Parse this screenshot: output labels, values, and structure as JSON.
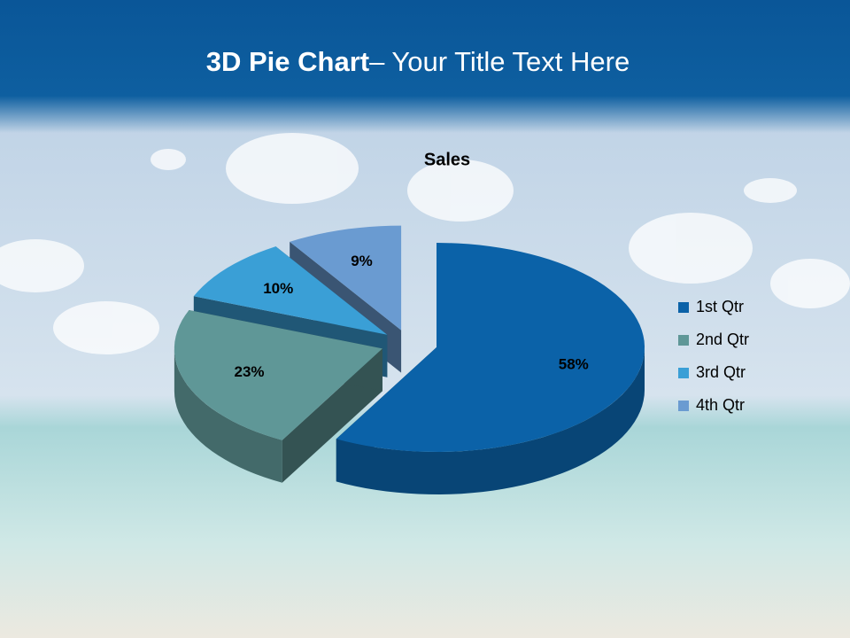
{
  "slide": {
    "title_bold": "3D Pie Chart",
    "title_rest": "– Your Title Text Here"
  },
  "chart_data": {
    "type": "pie3d",
    "title": "Sales",
    "categories": [
      "1st Qtr",
      "2nd Qtr",
      "3rd Qtr",
      "4th Qtr"
    ],
    "values": [
      58,
      23,
      10,
      9
    ],
    "value_labels": [
      "58%",
      "23%",
      "10%",
      "9%"
    ],
    "colors": [
      "#0b62a8",
      "#5f9797",
      "#3a9fd6",
      "#6a9bd1"
    ],
    "legend": "right"
  }
}
